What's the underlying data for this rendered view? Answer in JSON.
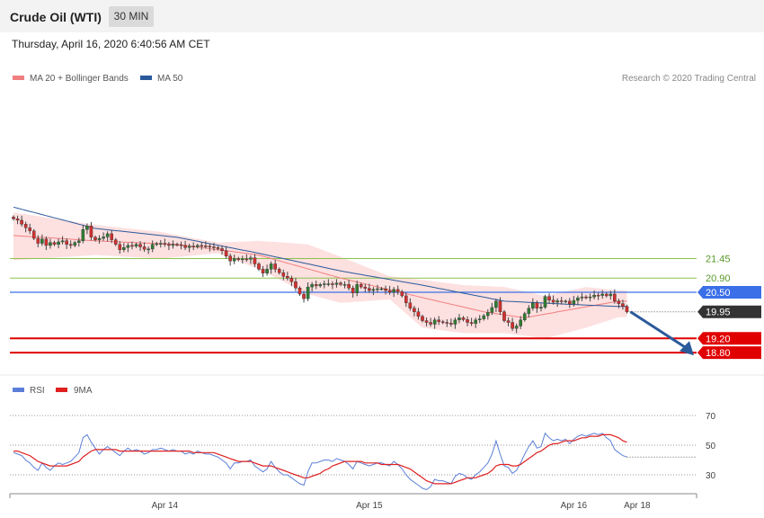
{
  "header": {
    "title": "Crude Oil (WTI)",
    "interval": "30 MIN",
    "datetime": "Thursday, April 16, 2020 6:40:56 AM CET"
  },
  "legend": {
    "ma20": "MA 20 + Bollinger Bands",
    "ma50": "MA 50",
    "credit": "Research © 2020 Trading Central",
    "rsi": "RSI",
    "rsi_ma": "9MA"
  },
  "colors": {
    "ma20": "#f08080",
    "ma50": "#2b5a9b",
    "band": "#fde0e0",
    "support": "#e00000",
    "pivot": "#3a6fe8",
    "resistance": "#8bc34a",
    "bull": "#2e7d32",
    "bear": "#d32f2f",
    "current": "#333333",
    "rsi": "#5b7fd8",
    "rsi_ma": "#e02020",
    "arrow": "#2b5a9b"
  },
  "chart_data": [
    {
      "type": "candlestick",
      "title": "Crude Oil (WTI)",
      "interval": "30 MIN",
      "x_ticks": [
        "Apr 14",
        "Apr 15",
        "Apr 16",
        "Apr 18"
      ],
      "ylim": [
        18.6,
        22.5
      ],
      "levels": [
        {
          "label": "21.45",
          "value": 21.45,
          "kind": "resistance"
        },
        {
          "label": "20.90",
          "value": 20.9,
          "kind": "resistance"
        },
        {
          "label": "20.50",
          "value": 20.5,
          "kind": "pivot"
        },
        {
          "label": "19.95",
          "value": 19.95,
          "kind": "current"
        },
        {
          "label": "19.20",
          "value": 19.2,
          "kind": "support"
        },
        {
          "label": "18.80",
          "value": 18.8,
          "kind": "support"
        }
      ],
      "close": [
        22.57,
        22.53,
        22.42,
        22.32,
        22.23,
        22.02,
        21.88,
        22.0,
        21.82,
        21.9,
        21.85,
        21.92,
        21.95,
        21.85,
        21.82,
        21.9,
        21.95,
        22.27,
        22.37,
        22.05,
        21.98,
        22.02,
        22.06,
        22.15,
        21.98,
        21.85,
        21.7,
        21.76,
        21.82,
        21.8,
        21.85,
        21.78,
        21.71,
        21.72,
        21.85,
        21.87,
        21.88,
        21.85,
        21.82,
        21.85,
        21.84,
        21.82,
        21.76,
        21.8,
        21.78,
        21.82,
        21.81,
        21.8,
        21.78,
        21.76,
        21.73,
        21.67,
        21.52,
        21.38,
        21.45,
        21.42,
        21.44,
        21.43,
        21.47,
        21.3,
        21.15,
        21.04,
        21.15,
        21.3,
        21.15,
        21.05,
        20.95,
        20.9,
        20.8,
        20.62,
        20.45,
        20.32,
        20.65,
        20.72,
        20.68,
        20.72,
        20.74,
        20.74,
        20.72,
        20.76,
        20.72,
        20.72,
        20.62,
        20.48,
        20.72,
        20.65,
        20.61,
        20.55,
        20.58,
        20.6,
        20.6,
        20.55,
        20.5,
        20.58,
        20.52,
        20.4,
        20.2,
        20.05,
        19.95,
        19.82,
        19.7,
        19.65,
        19.6,
        19.72,
        19.67,
        19.65,
        19.63,
        19.6,
        19.72,
        19.78,
        19.73,
        19.65,
        19.62,
        19.72,
        19.75,
        19.84,
        19.93,
        20.07,
        20.25,
        19.95,
        19.7,
        19.65,
        19.48,
        19.55,
        19.72,
        19.9,
        20.05,
        20.2,
        20.05,
        20.08,
        20.38,
        20.28,
        20.22,
        20.26,
        20.24,
        20.25,
        20.17,
        20.27,
        20.34,
        20.37,
        20.35,
        20.37,
        20.42,
        20.41,
        20.45,
        20.4,
        20.45,
        20.25,
        20.18,
        20.1,
        19.95
      ],
      "ma50_anchors": [
        [
          0,
          22.9
        ],
        [
          20,
          22.3
        ],
        [
          40,
          22.05
        ],
        [
          60,
          21.6
        ],
        [
          80,
          21.1
        ],
        [
          100,
          20.7
        ],
        [
          120,
          20.25
        ],
        [
          138,
          20.15
        ],
        [
          148,
          20.1
        ]
      ],
      "ma20_anchors": [
        [
          0,
          22.1
        ],
        [
          20,
          21.95
        ],
        [
          40,
          21.85
        ],
        [
          60,
          21.55
        ],
        [
          80,
          20.9
        ],
        [
          100,
          20.35
        ],
        [
          115,
          19.95
        ],
        [
          125,
          19.78
        ],
        [
          138,
          20.05
        ],
        [
          148,
          20.25
        ]
      ],
      "band_upper": [
        [
          0,
          22.75
        ],
        [
          20,
          22.4
        ],
        [
          36,
          22.2
        ],
        [
          50,
          21.9
        ],
        [
          60,
          21.95
        ],
        [
          72,
          21.85
        ],
        [
          80,
          21.5
        ],
        [
          92,
          20.95
        ],
        [
          100,
          20.85
        ],
        [
          110,
          20.7
        ],
        [
          120,
          20.65
        ],
        [
          130,
          20.4
        ],
        [
          140,
          20.65
        ],
        [
          148,
          20.55
        ]
      ],
      "band_lower": [
        [
          0,
          21.4
        ],
        [
          20,
          21.55
        ],
        [
          36,
          21.45
        ],
        [
          50,
          21.6
        ],
        [
          60,
          21.15
        ],
        [
          72,
          20.45
        ],
        [
          80,
          20.2
        ],
        [
          92,
          20.3
        ],
        [
          100,
          19.5
        ],
        [
          110,
          19.35
        ],
        [
          120,
          19.35
        ],
        [
          130,
          19.2
        ],
        [
          140,
          19.5
        ],
        [
          148,
          19.8
        ]
      ]
    },
    {
      "type": "line",
      "series": [
        {
          "name": "RSI",
          "values": [
            45,
            44,
            43,
            40,
            38,
            35,
            33,
            38,
            35,
            33,
            36,
            38,
            37,
            38,
            39,
            42,
            45,
            55,
            57,
            52,
            48,
            44,
            47,
            49,
            47,
            45,
            43,
            46,
            48,
            46,
            47,
            46,
            44,
            45,
            47,
            47,
            48,
            47,
            46,
            47,
            46,
            46,
            44,
            45,
            44,
            46,
            45,
            44,
            44,
            43,
            42,
            40,
            38,
            34,
            38,
            38,
            39,
            39,
            40,
            36,
            34,
            32,
            34,
            39,
            35,
            32,
            30,
            30,
            28,
            26,
            24,
            23,
            32,
            38,
            38,
            39,
            40,
            40,
            39,
            41,
            40,
            39,
            37,
            34,
            39,
            38,
            37,
            36,
            37,
            38,
            38,
            37,
            36,
            39,
            37,
            34,
            30,
            27,
            25,
            23,
            21,
            20,
            22,
            27,
            26,
            26,
            25,
            24,
            29,
            31,
            30,
            28,
            27,
            30,
            32,
            35,
            38,
            44,
            53,
            44,
            36,
            35,
            31,
            33,
            38,
            44,
            49,
            53,
            48,
            49,
            58,
            55,
            53,
            54,
            53,
            54,
            51,
            54,
            56,
            57,
            56,
            57,
            58,
            57,
            58,
            55,
            53,
            47,
            45,
            43,
            42
          ]
        },
        {
          "name": "9MA",
          "values": [
            46,
            46,
            45,
            44,
            43,
            41,
            39,
            38,
            37,
            36,
            36,
            36,
            36,
            36,
            37,
            38,
            39,
            42,
            44,
            46,
            47,
            47,
            47,
            47,
            47,
            47,
            46,
            46,
            46,
            46,
            46,
            46,
            46,
            46,
            46,
            46,
            46,
            46,
            46,
            46,
            46,
            46,
            46,
            46,
            45,
            45,
            45,
            45,
            45,
            45,
            44,
            43,
            42,
            41,
            40,
            39,
            39,
            39,
            39,
            38,
            37,
            36,
            36,
            36,
            35,
            34,
            33,
            32,
            31,
            30,
            29,
            28,
            28,
            29,
            30,
            31,
            33,
            34,
            36,
            37,
            38,
            39,
            39,
            39,
            39,
            39,
            38,
            38,
            38,
            38,
            37,
            37,
            37,
            37,
            37,
            36,
            35,
            34,
            32,
            30,
            28,
            26,
            25,
            24,
            24,
            24,
            24,
            24,
            25,
            26,
            27,
            28,
            28,
            28,
            29,
            30,
            31,
            33,
            36,
            37,
            37,
            37,
            36,
            36,
            37,
            39,
            41,
            43,
            45,
            46,
            48,
            50,
            51,
            51,
            52,
            53,
            53,
            53,
            54,
            55,
            55,
            56,
            56,
            56,
            57,
            57,
            57,
            56,
            55,
            53,
            52
          ]
        }
      ],
      "ylim": [
        20,
        80
      ],
      "ticks": [
        "70",
        "50",
        "30"
      ],
      "x_ticks": [
        "Apr 14",
        "Apr 15",
        "Apr 16",
        "Apr 18"
      ]
    }
  ]
}
